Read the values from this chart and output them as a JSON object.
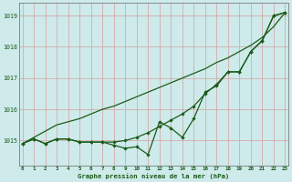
{
  "xlabel": "Graphe pression niveau de la mer (hPa)",
  "ylim": [
    1014.2,
    1019.4
  ],
  "xlim": [
    -0.3,
    23.3
  ],
  "yticks": [
    1015,
    1016,
    1017,
    1018,
    1019
  ],
  "xticks": [
    0,
    1,
    2,
    3,
    4,
    5,
    6,
    7,
    8,
    9,
    10,
    11,
    12,
    13,
    14,
    15,
    16,
    17,
    18,
    19,
    20,
    21,
    22,
    23
  ],
  "background_color": "#ceeaea",
  "grid_color": "#d4a0a0",
  "line_color": "#1a5c1a",
  "y_straight": [
    1014.9,
    1015.1,
    1015.3,
    1015.5,
    1015.6,
    1015.7,
    1015.85,
    1016.0,
    1016.1,
    1016.25,
    1016.4,
    1016.55,
    1016.7,
    1016.85,
    1017.0,
    1017.15,
    1017.3,
    1017.5,
    1017.65,
    1017.85,
    1018.05,
    1018.3,
    1018.65,
    1019.1
  ],
  "y_smooth": [
    1014.9,
    1015.05,
    1014.9,
    1015.05,
    1015.05,
    1014.95,
    1014.95,
    1014.95,
    1014.95,
    1015.0,
    1015.1,
    1015.25,
    1015.45,
    1015.65,
    1015.85,
    1016.1,
    1016.5,
    1016.8,
    1017.2,
    1017.2,
    1017.85,
    1018.2,
    1019.0,
    1019.1
  ],
  "y_zigzag": [
    1014.9,
    1015.05,
    1014.9,
    1015.05,
    1015.05,
    1014.95,
    1014.95,
    1014.95,
    1014.85,
    1014.75,
    1014.8,
    1014.55,
    1015.6,
    1015.4,
    1015.1,
    1015.7,
    1016.55,
    1016.75,
    1017.2,
    1017.2,
    1017.85,
    1018.2,
    1019.0,
    1019.1
  ],
  "markersize": 2.2,
  "linewidth": 0.9
}
